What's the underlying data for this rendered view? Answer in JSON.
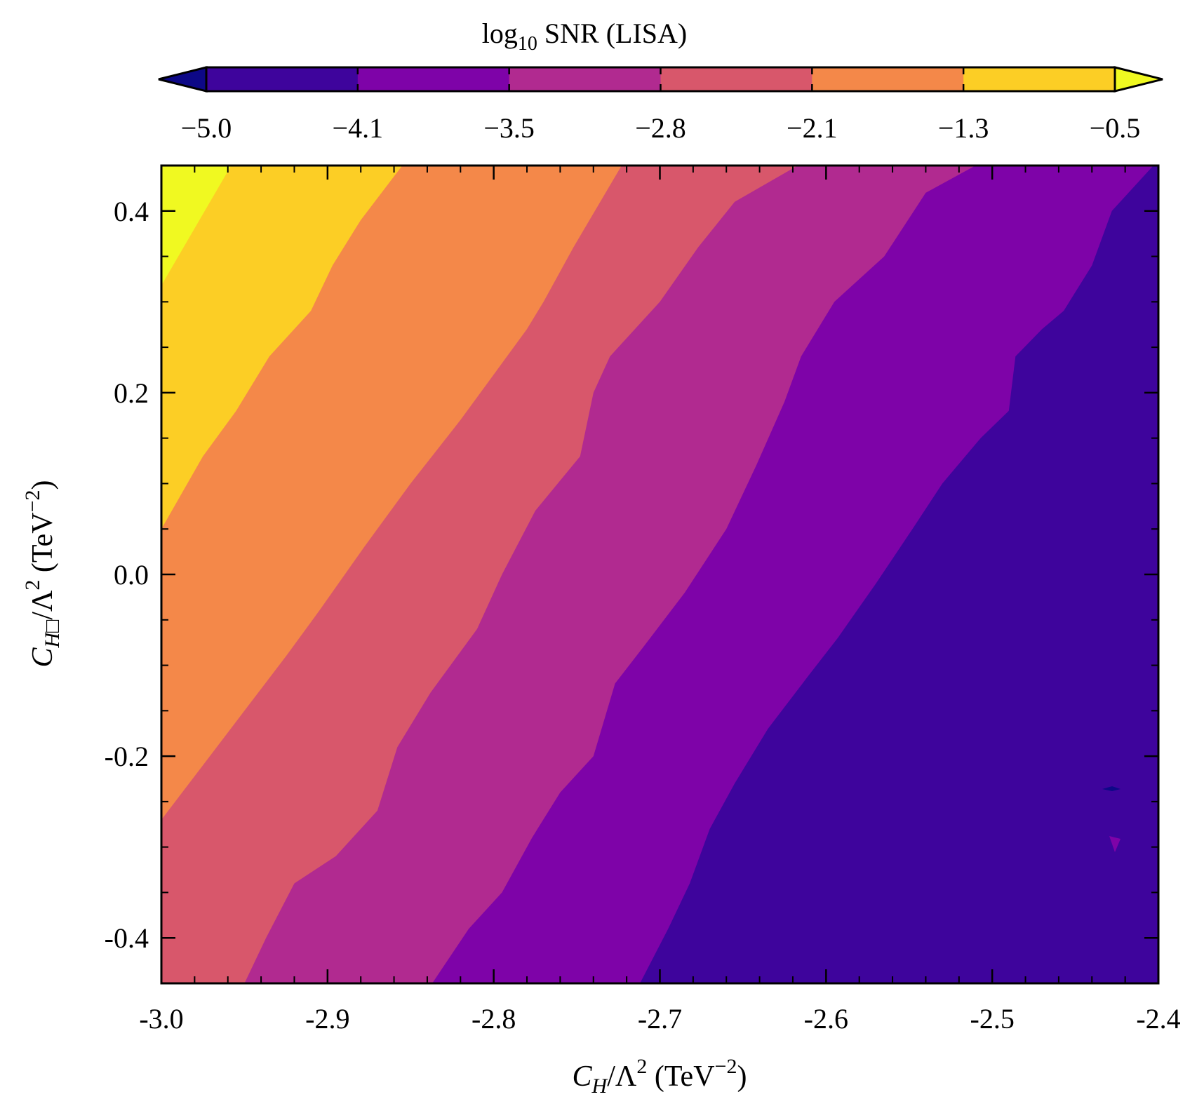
{
  "chart_data": {
    "type": "contour",
    "title": "",
    "xlabel": {
      "base": "C",
      "sub": "H",
      "rest": "/Λ",
      "sup": "2",
      "unit_pre": " (TeV",
      "unit_sup": "−2",
      "unit_post": ")"
    },
    "ylabel": {
      "base": "C",
      "sub": "H□",
      "rest": "/Λ",
      "sup": "2",
      "unit_pre": " (TeV",
      "unit_sup": "−2",
      "unit_post": ")"
    },
    "xlim": [
      -3.0,
      -2.4
    ],
    "ylim": [
      -0.45,
      0.45
    ],
    "xticks": [
      -3.0,
      -2.9,
      -2.8,
      -2.7,
      -2.6,
      -2.5,
      -2.4
    ],
    "xtick_labels": [
      "-3.0",
      "-2.9",
      "-2.8",
      "-2.7",
      "-2.6",
      "-2.5",
      "-2.4"
    ],
    "yticks": [
      0.4,
      0.2,
      0.0,
      -0.2,
      -0.4
    ],
    "ytick_labels": [
      "0.4",
      "0.2",
      "0.0",
      "-0.2",
      "-0.4"
    ],
    "colorbar": {
      "label_base": "log",
      "label_sub": "10",
      "label_rest": " SNR (LISA)",
      "ticks": [
        "−5.0",
        "−4.1",
        "−3.5",
        "−2.8",
        "−2.1",
        "−1.3",
        "−0.5"
      ],
      "extend": "both",
      "levels_colors": [
        "#0d0887",
        "#3e049c",
        "#7e03a8",
        "#b12a90",
        "#d8576b",
        "#f48849",
        "#fcce25",
        "#f0f921"
      ]
    },
    "band_boundaries": [
      {
        "level": "−0.5",
        "points": [
          [
            -3.0,
            0.318
          ],
          [
            -2.958,
            0.45
          ]
        ]
      },
      {
        "level": "−1.3",
        "points": [
          [
            -3.0,
            0.05
          ],
          [
            -2.975,
            0.13
          ],
          [
            -2.955,
            0.18
          ],
          [
            -2.935,
            0.24
          ],
          [
            -2.91,
            0.29
          ],
          [
            -2.897,
            0.34
          ],
          [
            -2.88,
            0.39
          ],
          [
            -2.855,
            0.45
          ]
        ]
      },
      {
        "level": "−2.1",
        "points": [
          [
            -3.0,
            -0.27
          ],
          [
            -2.975,
            -0.21
          ],
          [
            -2.95,
            -0.15
          ],
          [
            -2.925,
            -0.09
          ],
          [
            -2.905,
            -0.04
          ],
          [
            -2.878,
            0.03
          ],
          [
            -2.85,
            0.1
          ],
          [
            -2.82,
            0.17
          ],
          [
            -2.8,
            0.22
          ],
          [
            -2.78,
            0.27
          ],
          [
            -2.77,
            0.3
          ],
          [
            -2.752,
            0.36
          ],
          [
            -2.723,
            0.45
          ]
        ]
      },
      {
        "level": "−2.8",
        "points": [
          [
            -2.95,
            -0.45
          ],
          [
            -2.937,
            -0.4
          ],
          [
            -2.92,
            -0.34
          ],
          [
            -2.895,
            -0.31
          ],
          [
            -2.87,
            -0.26
          ],
          [
            -2.858,
            -0.19
          ],
          [
            -2.838,
            -0.13
          ],
          [
            -2.81,
            -0.06
          ],
          [
            -2.795,
            0.0
          ],
          [
            -2.775,
            0.07
          ],
          [
            -2.748,
            0.13
          ],
          [
            -2.74,
            0.2
          ],
          [
            -2.73,
            0.24
          ],
          [
            -2.7,
            0.3
          ],
          [
            -2.677,
            0.36
          ],
          [
            -2.655,
            0.41
          ],
          [
            -2.617,
            0.45
          ]
        ]
      },
      {
        "level": "−3.5",
        "points": [
          [
            -2.837,
            -0.45
          ],
          [
            -2.815,
            -0.39
          ],
          [
            -2.795,
            -0.35
          ],
          [
            -2.777,
            -0.29
          ],
          [
            -2.76,
            -0.24
          ],
          [
            -2.74,
            -0.2
          ],
          [
            -2.727,
            -0.12
          ],
          [
            -2.71,
            -0.08
          ],
          [
            -2.685,
            -0.02
          ],
          [
            -2.66,
            0.05
          ],
          [
            -2.642,
            0.12
          ],
          [
            -2.625,
            0.19
          ],
          [
            -2.615,
            0.24
          ],
          [
            -2.595,
            0.3
          ],
          [
            -2.565,
            0.35
          ],
          [
            -2.54,
            0.42
          ],
          [
            -2.51,
            0.45
          ]
        ]
      },
      {
        "level": "−4.1",
        "points": [
          [
            -2.712,
            -0.45
          ],
          [
            -2.695,
            -0.39
          ],
          [
            -2.682,
            -0.34
          ],
          [
            -2.67,
            -0.28
          ],
          [
            -2.655,
            -0.23
          ],
          [
            -2.635,
            -0.17
          ],
          [
            -2.61,
            -0.11
          ],
          [
            -2.593,
            -0.07
          ],
          [
            -2.57,
            -0.01
          ],
          [
            -2.548,
            0.05
          ],
          [
            -2.53,
            0.1
          ],
          [
            -2.507,
            0.15
          ],
          [
            -2.49,
            0.18
          ],
          [
            -2.486,
            0.24
          ],
          [
            -2.47,
            0.27
          ],
          [
            -2.457,
            0.29
          ],
          [
            -2.44,
            0.34
          ],
          [
            -2.428,
            0.4
          ],
          [
            -2.403,
            0.45
          ]
        ]
      }
    ]
  }
}
